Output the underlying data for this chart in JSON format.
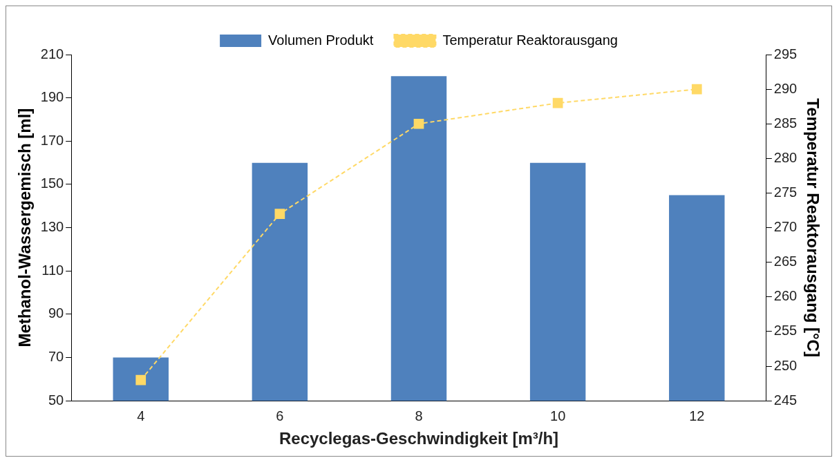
{
  "chart_data": {
    "type": "bar",
    "xlabel": "Recyclegas-Geschwindigkeit [m³/h]",
    "ylabel": "Methanol-Wassergemisch [ml]",
    "y2label": "Temperatur Reaktorausgang [°C]",
    "categories": [
      "4",
      "6",
      "8",
      "10",
      "12"
    ],
    "series": [
      {
        "name": "Volumen Produkt",
        "color": "#4f81bd",
        "values": [
          70,
          160,
          200,
          160,
          145
        ]
      },
      {
        "name": "Temperatur Reaktorausgang",
        "type": "line",
        "axis": "y2",
        "color": "#ffd966",
        "marker": "square",
        "line_style": "dashed",
        "values": [
          248,
          272,
          285,
          288,
          290
        ]
      }
    ],
    "ylim": [
      50,
      210
    ],
    "yticks": [
      50,
      70,
      90,
      110,
      130,
      150,
      170,
      190,
      210
    ],
    "y2lim": [
      245,
      295
    ],
    "y2ticks": [
      245,
      250,
      255,
      260,
      265,
      270,
      275,
      280,
      285,
      290,
      295
    ],
    "grid": false,
    "legend": "top"
  }
}
